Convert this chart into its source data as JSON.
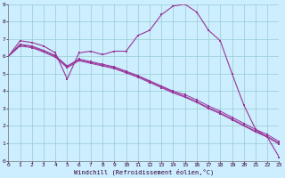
{
  "xlabel": "Windchill (Refroidissement éolien,°C)",
  "bg_color": "#cceeff",
  "grid_color": "#99cccc",
  "line_color": "#993399",
  "xlim": [
    0,
    23
  ],
  "ylim": [
    0,
    9
  ],
  "xticks": [
    0,
    1,
    2,
    3,
    4,
    5,
    6,
    7,
    8,
    9,
    10,
    11,
    12,
    13,
    14,
    15,
    16,
    17,
    18,
    19,
    20,
    21,
    22,
    23
  ],
  "yticks": [
    0,
    1,
    2,
    3,
    4,
    5,
    6,
    7,
    8,
    9
  ],
  "line1_x": [
    0,
    1,
    2,
    3,
    4,
    5,
    6,
    7,
    8,
    9,
    10,
    11,
    12,
    13,
    14,
    15,
    16,
    17,
    18,
    19,
    20,
    21,
    22,
    23
  ],
  "line1_y": [
    6.0,
    6.9,
    6.8,
    6.6,
    6.2,
    4.7,
    6.2,
    6.3,
    6.1,
    6.3,
    6.3,
    7.2,
    7.5,
    8.4,
    8.9,
    9.0,
    8.55,
    7.5,
    6.9,
    5.0,
    3.2,
    1.8,
    1.35,
    0.2
  ],
  "line2_x": [
    0,
    1,
    2,
    3,
    4,
    5,
    6,
    7,
    8,
    9,
    10,
    11,
    12,
    13,
    14,
    15,
    16,
    17,
    18,
    19,
    20,
    21,
    22,
    23
  ],
  "line2_y": [
    6.0,
    6.7,
    6.6,
    6.35,
    6.05,
    5.45,
    5.85,
    5.7,
    5.55,
    5.4,
    5.15,
    4.9,
    4.6,
    4.3,
    4.0,
    3.8,
    3.5,
    3.15,
    2.85,
    2.5,
    2.15,
    1.8,
    1.5,
    1.1
  ],
  "line3_x": [
    0,
    1,
    2,
    3,
    4,
    5,
    6,
    7,
    8,
    9,
    10,
    11,
    12,
    13,
    14,
    15,
    16,
    17,
    18,
    19,
    20,
    21,
    22,
    23
  ],
  "line3_y": [
    6.0,
    6.65,
    6.55,
    6.3,
    6.0,
    5.4,
    5.8,
    5.65,
    5.5,
    5.35,
    5.1,
    4.85,
    4.55,
    4.25,
    3.95,
    3.7,
    3.4,
    3.05,
    2.75,
    2.4,
    2.05,
    1.7,
    1.4,
    1.0
  ],
  "line4_x": [
    0,
    1,
    2,
    3,
    4,
    5,
    6,
    7,
    8,
    9,
    10,
    11,
    12,
    13,
    14,
    15,
    16,
    17,
    18,
    19,
    20,
    21,
    22,
    23
  ],
  "line4_y": [
    6.0,
    6.6,
    6.5,
    6.25,
    5.95,
    5.35,
    5.75,
    5.6,
    5.45,
    5.3,
    5.05,
    4.8,
    4.5,
    4.2,
    3.9,
    3.65,
    3.35,
    3.0,
    2.7,
    2.35,
    2.0,
    1.65,
    1.35,
    0.95
  ]
}
